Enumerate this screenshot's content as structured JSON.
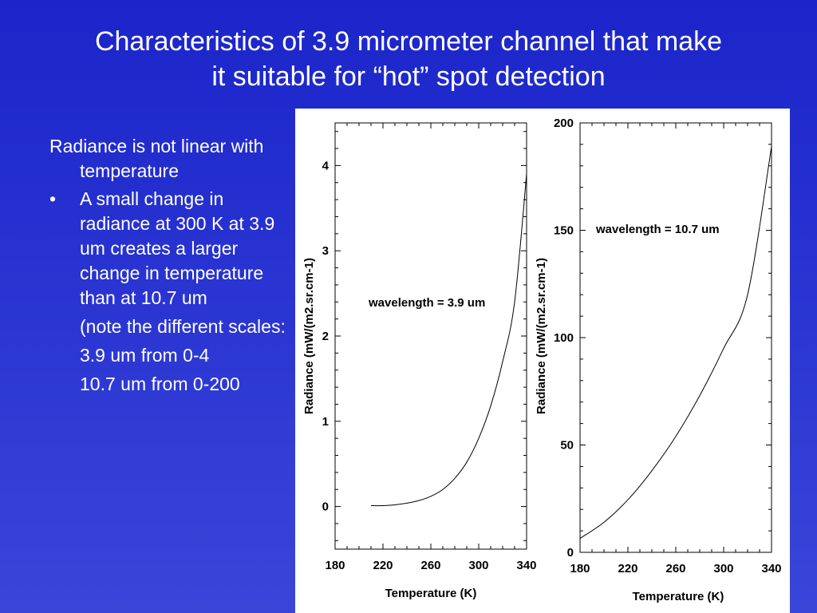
{
  "slide": {
    "title_line1": "Characteristics of 3.9 micrometer channel that make",
    "title_line2": "it suitable for “hot” spot detection"
  },
  "bullets": {
    "intro": "Radiance is not linear with temperature",
    "bullet_glyph": "•",
    "point": "A small change in radiance at 300 K at 3.9 um creates a larger change in temperature than at 10.7 um",
    "note_1": "(note the different scales:",
    "note_2": "3.9 um from 0-4",
    "note_3": "10.7 um from 0-200"
  },
  "chart_data": [
    {
      "type": "line",
      "annotation": "wavelength = 3.9 um",
      "xlabel": "Temperature (K)",
      "ylabel": "Radiance (mW/(m2.sr.cm-1)",
      "xlim": [
        180,
        340
      ],
      "ylim": [
        -0.5,
        4.5
      ],
      "xticks": [
        180,
        220,
        260,
        300,
        340
      ],
      "yticks": [
        0,
        1,
        2,
        3,
        4
      ],
      "x": [
        210,
        220,
        230,
        240,
        250,
        260,
        270,
        280,
        290,
        300,
        310,
        320,
        330,
        340
      ],
      "y": [
        0.01,
        0.01,
        0.02,
        0.04,
        0.07,
        0.12,
        0.2,
        0.33,
        0.52,
        0.8,
        1.18,
        1.7,
        2.4,
        3.9
      ],
      "grid": false,
      "color": "#000000"
    },
    {
      "type": "line",
      "annotation": "wavelength = 10.7 um",
      "xlabel": "Temperature (K)",
      "ylabel": "Radiance (mW/(m2.sr.cm-1)",
      "xlim": [
        180,
        340
      ],
      "ylim": [
        0,
        200
      ],
      "xticks": [
        180,
        220,
        260,
        300,
        340
      ],
      "yticks": [
        0,
        50,
        100,
        150,
        200
      ],
      "x": [
        180,
        200,
        220,
        240,
        260,
        280,
        300,
        320,
        340
      ],
      "y": [
        6.5,
        14,
        24.5,
        38,
        54,
        73,
        95,
        120,
        189
      ],
      "grid": false,
      "color": "#000000"
    }
  ]
}
